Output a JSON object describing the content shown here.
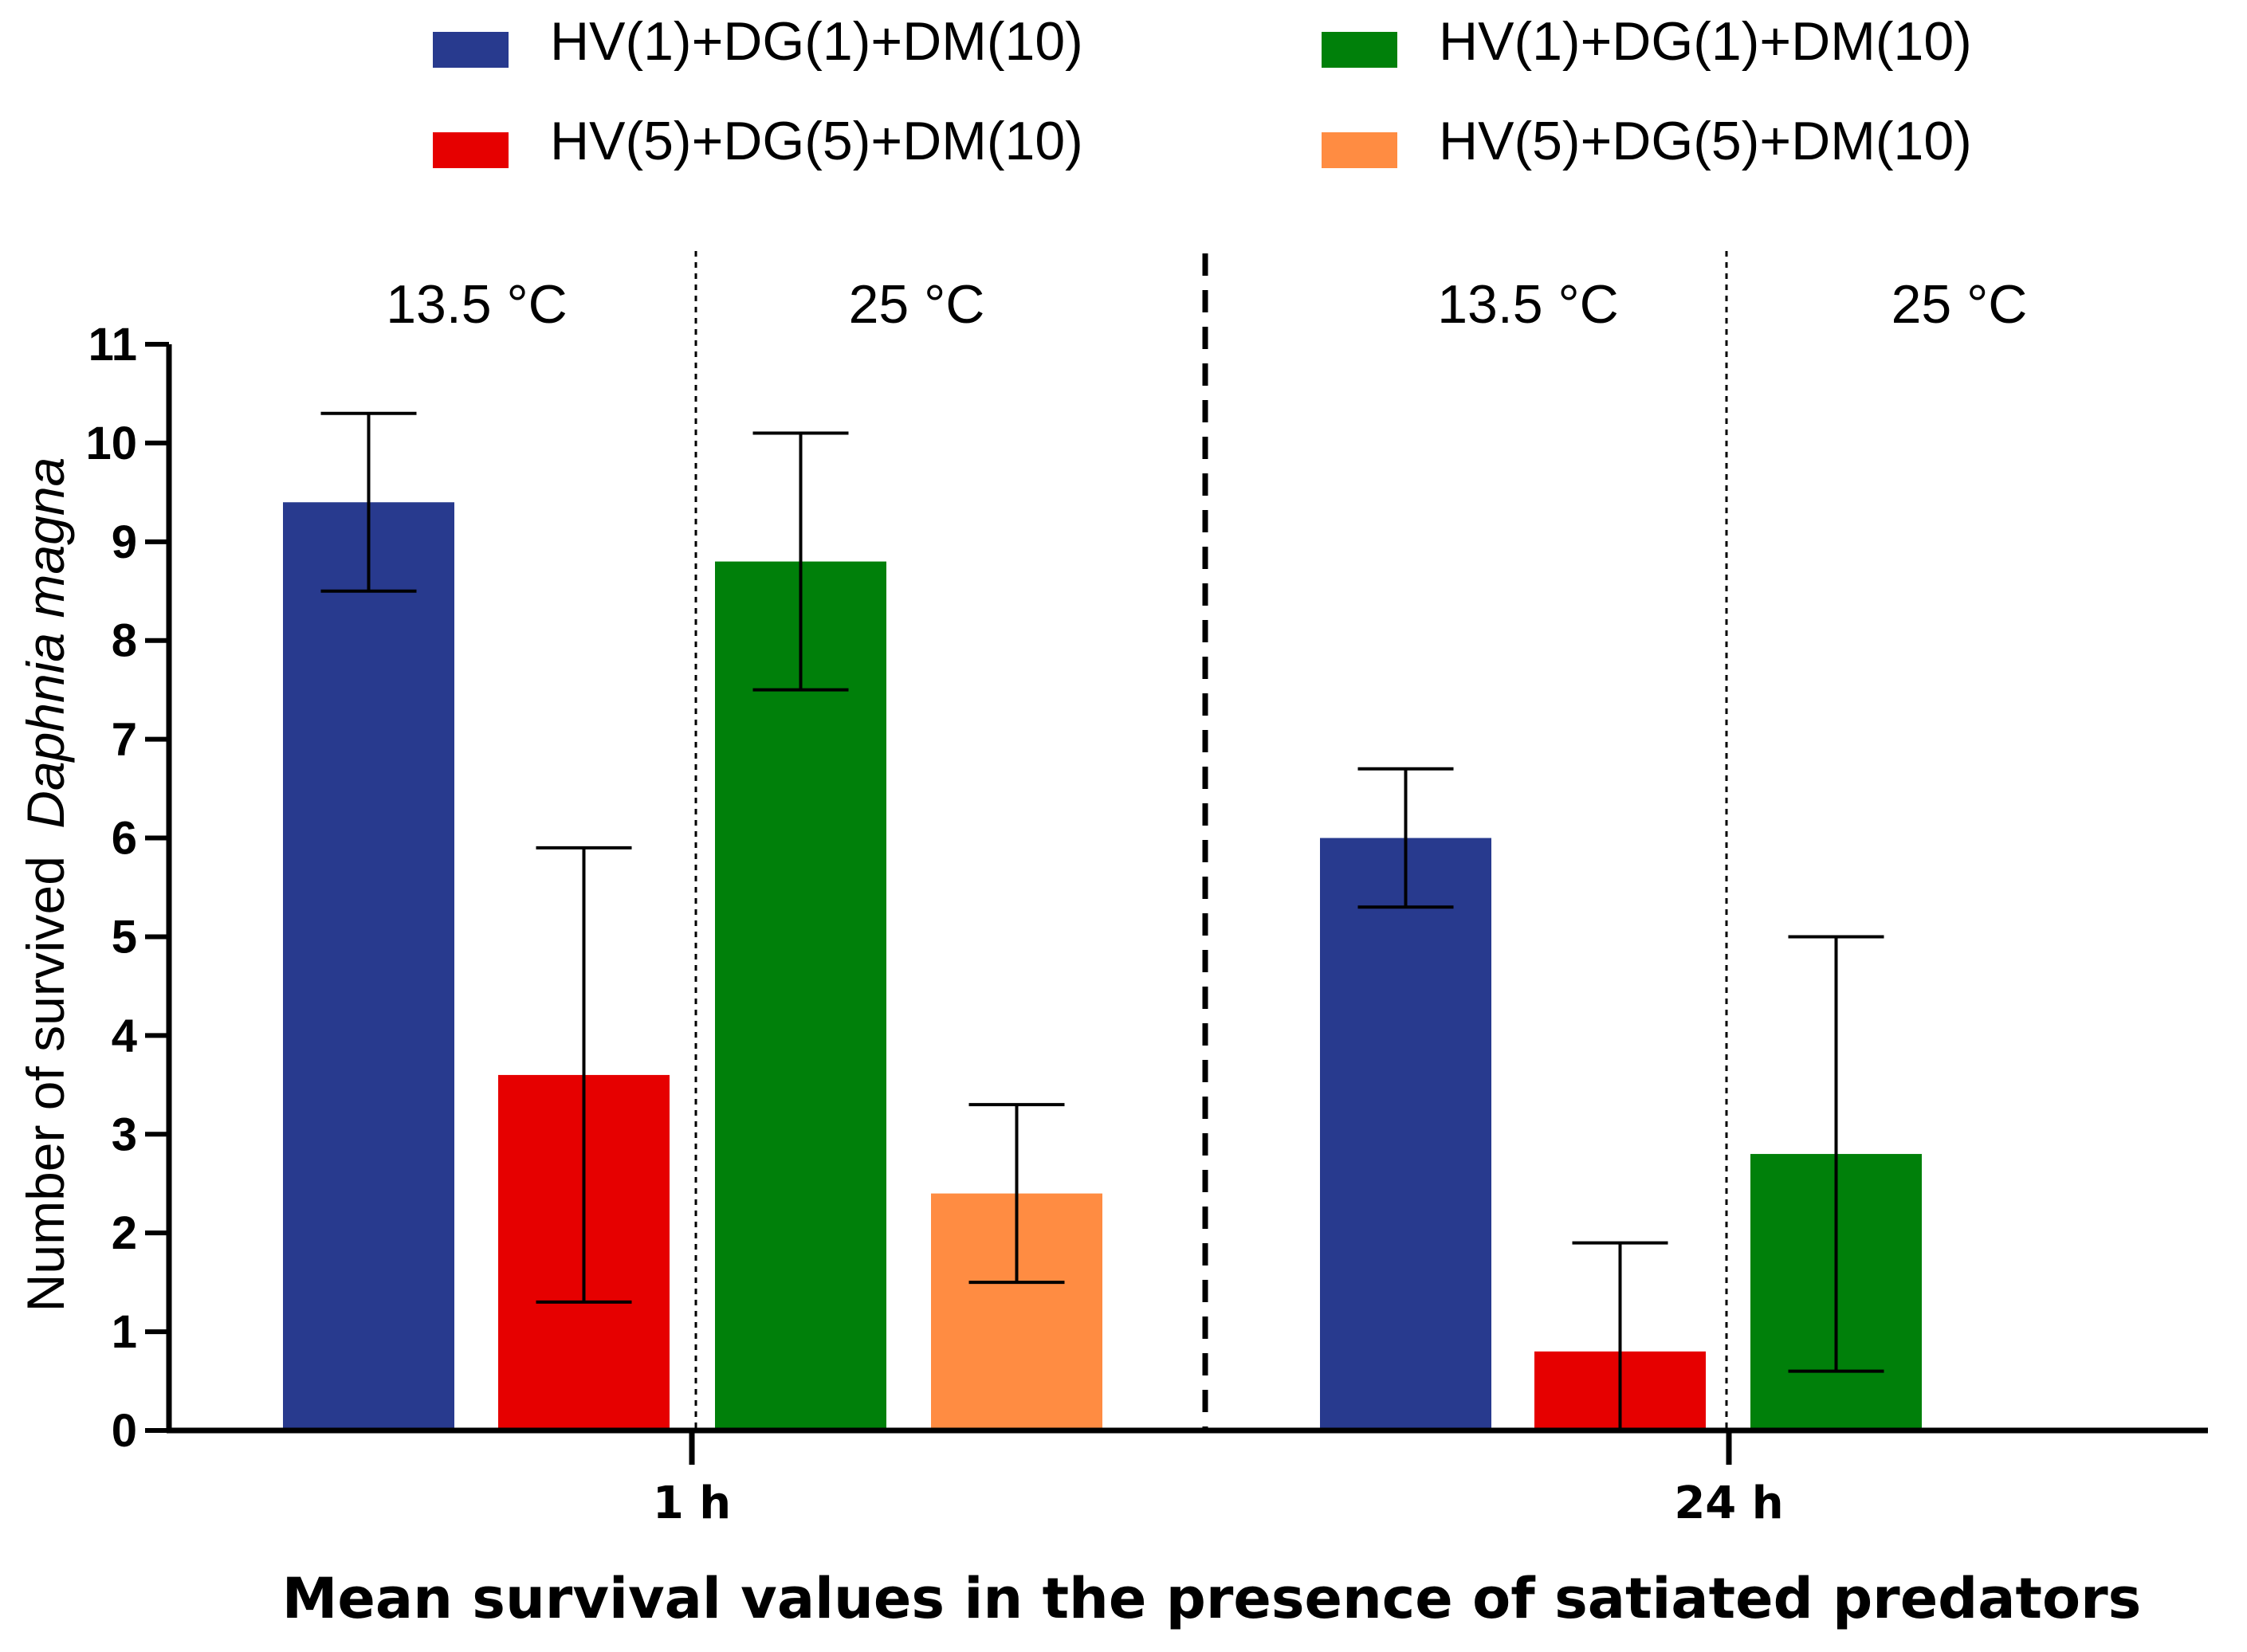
{
  "chart_data": {
    "type": "bar",
    "title": "",
    "xlabel": "Mean survival values in the presence of satiated predators",
    "ylabel": "Number of survived",
    "ylabel_italic": "Daphnia magna",
    "ylim": [
      0,
      11
    ],
    "yticks": [
      0,
      1,
      2,
      3,
      4,
      5,
      6,
      7,
      8,
      9,
      10,
      11
    ],
    "legend_position": "top",
    "groups": [
      "1 h",
      "24 h"
    ],
    "temperature_labels": [
      "13.5 °C",
      "25 °C",
      "13.5 °C",
      "25 °C"
    ],
    "series": [
      {
        "name": "HV(1)+DG(1)+DM(10)",
        "color": "#283a8e"
      },
      {
        "name": "HV(5)+DG(5)+DM(10)",
        "color": "#e60000"
      },
      {
        "name": "HV(1)+DG(1)+DM(10)",
        "color": "#00800a"
      },
      {
        "name": "HV(5)+DG(5)+DM(10)",
        "color": "#ff8c42"
      }
    ],
    "bars": [
      {
        "group": "1 h",
        "temp": "13.5 °C",
        "series": 0,
        "value": 9.4,
        "err_low": 8.5,
        "err_high": 10.3
      },
      {
        "group": "1 h",
        "temp": "13.5 °C",
        "series": 1,
        "value": 3.6,
        "err_low": 1.3,
        "err_high": 5.9
      },
      {
        "group": "1 h",
        "temp": "25 °C",
        "series": 2,
        "value": 8.8,
        "err_low": 7.5,
        "err_high": 10.1
      },
      {
        "group": "1 h",
        "temp": "25 °C",
        "series": 3,
        "value": 2.4,
        "err_low": 1.5,
        "err_high": 3.3
      },
      {
        "group": "24 h",
        "temp": "13.5 °C",
        "series": 0,
        "value": 6.0,
        "err_low": 5.3,
        "err_high": 6.7
      },
      {
        "group": "24 h",
        "temp": "13.5 °C",
        "series": 1,
        "value": 0.8,
        "err_low": 0.0,
        "err_high": 1.9
      },
      {
        "group": "24 h",
        "temp": "25 °C",
        "series": 2,
        "value": 2.8,
        "err_low": 0.6,
        "err_high": 5.0
      }
    ]
  }
}
